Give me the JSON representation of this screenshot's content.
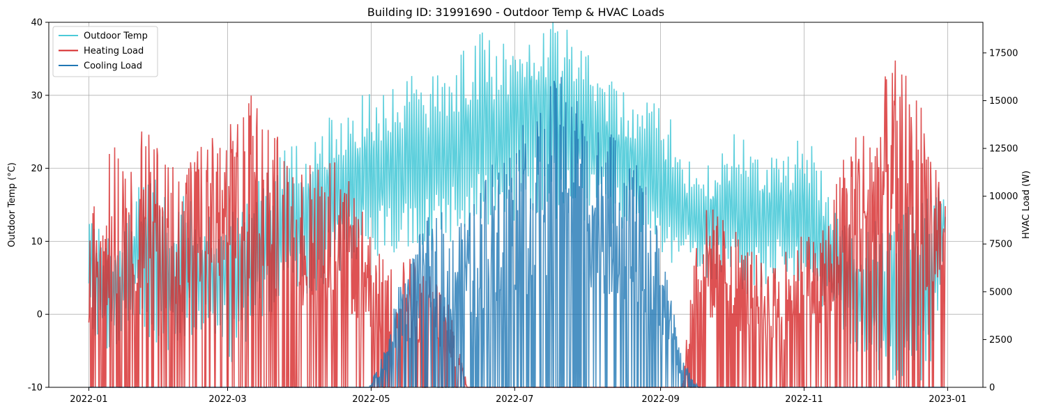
{
  "chart_data": {
    "type": "line",
    "title": "Building ID: 31991690 - Outdoor Temp & HVAC Loads",
    "x_axis": {
      "type": "date",
      "range": [
        "2021-12-15",
        "2023-01-16"
      ],
      "tick_labels": [
        "2022-01",
        "2022-03",
        "2022-05",
        "2022-07",
        "2022-09",
        "2022-11",
        "2023-01"
      ],
      "tick_dates": [
        "2022-01-01",
        "2022-03-01",
        "2022-05-01",
        "2022-07-01",
        "2022-09-01",
        "2022-11-01",
        "2023-01-01"
      ]
    },
    "y_left": {
      "label": "Outdoor Temp (°C)",
      "range": [
        -10,
        40
      ],
      "ticks": [
        -10,
        0,
        10,
        20,
        30,
        40
      ]
    },
    "y_right": {
      "label": "HVAC Load (W)",
      "range": [
        0,
        19100
      ],
      "ticks": [
        0,
        2500,
        5000,
        7500,
        10000,
        12500,
        15000,
        17500
      ]
    },
    "grid": true,
    "legend": {
      "placement": "top-left",
      "entries": [
        "Outdoor Temp",
        "Heating Load",
        "Cooling Load"
      ]
    },
    "series": [
      {
        "name": "Outdoor Temp",
        "axis": "left",
        "color": "#4bcad8",
        "start_date": "2022-01-01",
        "step_days": 7,
        "daily_range_envelope": [
          [
            1,
            11
          ],
          [
            -3,
            8
          ],
          [
            -1,
            9
          ],
          [
            2,
            15
          ],
          [
            0,
            17
          ],
          [
            -2,
            12
          ],
          [
            -1,
            13
          ],
          [
            0,
            11
          ],
          [
            -1,
            10
          ],
          [
            -4,
            12
          ],
          [
            1,
            15
          ],
          [
            3,
            17
          ],
          [
            4,
            19
          ],
          [
            6,
            20
          ],
          [
            7,
            22
          ],
          [
            9,
            24
          ],
          [
            10,
            25
          ],
          [
            11,
            27
          ],
          [
            12,
            28
          ],
          [
            12,
            28
          ],
          [
            11,
            29
          ],
          [
            13,
            29
          ],
          [
            14,
            31
          ],
          [
            15,
            33
          ],
          [
            15,
            34
          ],
          [
            16,
            33
          ],
          [
            17,
            35
          ],
          [
            18,
            37
          ],
          [
            17,
            36
          ],
          [
            18,
            35
          ],
          [
            17,
            34
          ],
          [
            16,
            31
          ],
          [
            15,
            28
          ],
          [
            14,
            27
          ],
          [
            13,
            27
          ],
          [
            10,
            25
          ],
          [
            9,
            20
          ],
          [
            8,
            17
          ],
          [
            7,
            19
          ],
          [
            8,
            22
          ],
          [
            6,
            20
          ],
          [
            7,
            20
          ],
          [
            8,
            19
          ],
          [
            7,
            21
          ],
          [
            5,
            20
          ],
          [
            3,
            13
          ],
          [
            -1,
            10
          ],
          [
            -3,
            8
          ],
          [
            -6,
            10
          ],
          [
            -8,
            9
          ],
          [
            -6,
            11
          ],
          [
            -5,
            12
          ],
          [
            10,
            17
          ]
        ]
      },
      {
        "name": "Heating Load",
        "axis": "right",
        "color": "#d62728",
        "start_date": "2022-01-01",
        "step_days": 7,
        "peak_envelope": [
          8500,
          12000,
          13500,
          14000,
          13000,
          12500,
          12000,
          13500,
          13000,
          14500,
          15500,
          14500,
          12000,
          11500,
          12500,
          12000,
          10500,
          8500,
          6500,
          7000,
          6500,
          6000,
          4000,
          0,
          0,
          0,
          0,
          0,
          0,
          0,
          0,
          0,
          0,
          0,
          0,
          0,
          0,
          9500,
          9500,
          8500,
          7500,
          6500,
          6500,
          8500,
          8000,
          9500,
          13000,
          14000,
          16000,
          17200,
          16500,
          14000,
          11000
        ]
      },
      {
        "name": "Cooling Load",
        "axis": "right",
        "color": "#1f77b4",
        "start_date": "2022-01-01",
        "step_days": 7,
        "peak_envelope": [
          0,
          0,
          0,
          0,
          0,
          0,
          0,
          0,
          0,
          0,
          0,
          0,
          0,
          0,
          0,
          0,
          0,
          0,
          2000,
          6000,
          8000,
          9500,
          9000,
          9000,
          11000,
          13500,
          14000,
          13500,
          16000,
          16500,
          15000,
          14000,
          13000,
          12000,
          10500,
          6500,
          1500,
          0,
          0,
          0,
          0,
          0,
          0,
          0,
          0,
          0,
          0,
          0,
          0,
          0,
          0,
          0,
          0
        ]
      }
    ]
  }
}
